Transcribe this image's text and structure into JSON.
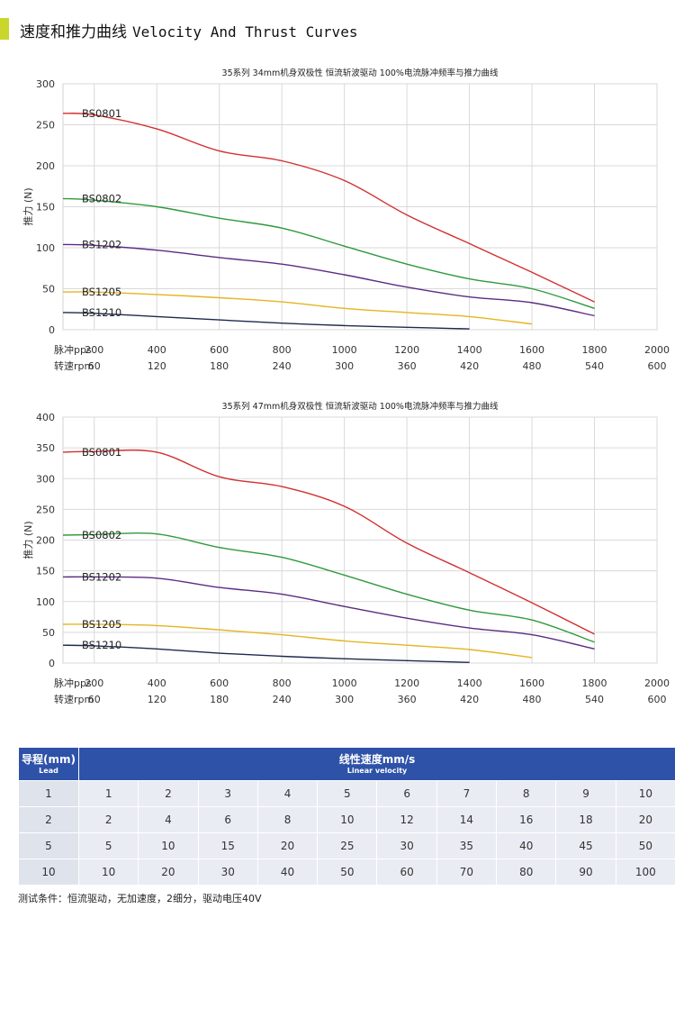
{
  "header": {
    "title_cn": "速度和推力曲线",
    "title_en": "Velocity And Thrust Curves",
    "accent_color": "#c9d62b"
  },
  "chart_data": [
    {
      "type": "line",
      "title": "35系列 34mm机身双极性 恒流斩波驱动 100%电流脉冲频率与推力曲线",
      "ylabel": "推力 (N)",
      "xlabel": "脉冲pps",
      "x2label": "转速rpm",
      "xlim": [
        100,
        2000
      ],
      "ylim": [
        0,
        300
      ],
      "yticks": [
        0,
        50,
        100,
        150,
        200,
        250,
        300
      ],
      "xticks": [
        200,
        400,
        600,
        800,
        1000,
        1200,
        1400,
        1600,
        1800,
        2000
      ],
      "x2ticks": [
        60,
        120,
        180,
        240,
        300,
        360,
        420,
        480,
        540,
        600
      ],
      "grid": true,
      "series": [
        {
          "name": "BS0801",
          "color": "#d32f2f",
          "x": [
            100,
            200,
            400,
            600,
            800,
            1000,
            1200,
            1400,
            1600,
            1800
          ],
          "y": [
            264,
            262,
            245,
            218,
            206,
            182,
            140,
            105,
            70,
            34
          ]
        },
        {
          "name": "BS0802",
          "color": "#2e9a3c",
          "x": [
            100,
            200,
            400,
            600,
            800,
            1000,
            1200,
            1400,
            1600,
            1800
          ],
          "y": [
            160,
            158,
            150,
            136,
            124,
            102,
            80,
            62,
            50,
            26
          ]
        },
        {
          "name": "BS1202",
          "color": "#5b2c83",
          "x": [
            100,
            200,
            400,
            600,
            800,
            1000,
            1200,
            1400,
            1600,
            1800
          ],
          "y": [
            104,
            103,
            97,
            88,
            80,
            67,
            52,
            40,
            33,
            17
          ]
        },
        {
          "name": "BS1205",
          "color": "#e6b422",
          "x": [
            100,
            200,
            400,
            600,
            800,
            1000,
            1200,
            1400,
            1600
          ],
          "y": [
            46,
            46,
            43,
            39,
            34,
            26,
            21,
            16,
            7
          ]
        },
        {
          "name": "BS1210",
          "color": "#1d2b4d",
          "x": [
            100,
            200,
            400,
            600,
            800,
            1000,
            1200,
            1400
          ],
          "y": [
            21,
            20,
            16,
            12,
            8,
            5,
            3,
            1
          ]
        }
      ]
    },
    {
      "type": "line",
      "title": "35系列 47mm机身双极性 恒流斩波驱动 100%电流脉冲频率与推力曲线",
      "ylabel": "推力 (N)",
      "xlabel": "脉冲pps",
      "x2label": "转速rpm",
      "xlim": [
        100,
        2000
      ],
      "ylim": [
        0,
        400
      ],
      "yticks": [
        0,
        50,
        100,
        150,
        200,
        250,
        300,
        350,
        400
      ],
      "xticks": [
        200,
        400,
        600,
        800,
        1000,
        1200,
        1400,
        1600,
        1800,
        2000
      ],
      "x2ticks": [
        60,
        120,
        180,
        240,
        300,
        360,
        420,
        480,
        540,
        600
      ],
      "grid": true,
      "series": [
        {
          "name": "BS0801",
          "color": "#d32f2f",
          "x": [
            100,
            200,
            400,
            600,
            800,
            1000,
            1200,
            1400,
            1600,
            1800
          ],
          "y": [
            343,
            344,
            343,
            303,
            287,
            255,
            195,
            147,
            98,
            47
          ]
        },
        {
          "name": "BS0802",
          "color": "#2e9a3c",
          "x": [
            100,
            200,
            400,
            600,
            800,
            1000,
            1200,
            1400,
            1600,
            1800
          ],
          "y": [
            208,
            209,
            210,
            188,
            172,
            143,
            112,
            86,
            70,
            34
          ]
        },
        {
          "name": "BS1202",
          "color": "#5b2c83",
          "x": [
            100,
            200,
            400,
            600,
            800,
            1000,
            1200,
            1400,
            1600,
            1800
          ],
          "y": [
            140,
            140,
            138,
            123,
            112,
            92,
            73,
            57,
            46,
            23
          ]
        },
        {
          "name": "BS1205",
          "color": "#e6b422",
          "x": [
            100,
            200,
            400,
            600,
            800,
            1000,
            1200,
            1400,
            1600
          ],
          "y": [
            63,
            63,
            61,
            54,
            46,
            36,
            29,
            22,
            9
          ]
        },
        {
          "name": "BS1210",
          "color": "#1d2b4d",
          "x": [
            100,
            200,
            400,
            600,
            800,
            1000,
            1200,
            1400
          ],
          "y": [
            29,
            28,
            23,
            16,
            11,
            7,
            4,
            1
          ]
        }
      ]
    }
  ],
  "table": {
    "header_color": "#2e52a8",
    "lead_header": "导程(mm)",
    "lead_header_en": "Lead",
    "velocity_header": "线性速度mm/s",
    "velocity_header_en": "Linear velocity",
    "rows": [
      {
        "lead": "1",
        "values": [
          "1",
          "2",
          "3",
          "4",
          "5",
          "6",
          "7",
          "8",
          "9",
          "10"
        ]
      },
      {
        "lead": "2",
        "values": [
          "2",
          "4",
          "6",
          "8",
          "10",
          "12",
          "14",
          "16",
          "18",
          "20"
        ]
      },
      {
        "lead": "5",
        "values": [
          "5",
          "10",
          "15",
          "20",
          "25",
          "30",
          "35",
          "40",
          "45",
          "50"
        ]
      },
      {
        "lead": "10",
        "values": [
          "10",
          "20",
          "30",
          "40",
          "50",
          "60",
          "70",
          "80",
          "90",
          "100"
        ]
      }
    ]
  },
  "note": "测试条件：恒流驱动，无加速度，2细分，驱动电压40V"
}
